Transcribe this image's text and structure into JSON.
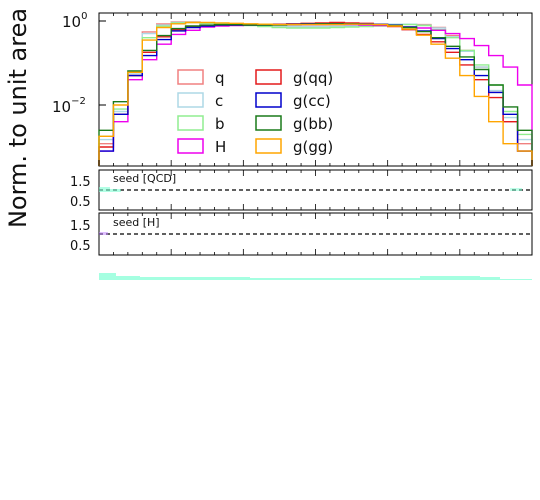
{
  "chart_data": {
    "type": "step",
    "scale": "log",
    "ylabel": "Norm. to unit area",
    "ytick_labels": {
      "top": [
        "10",
        "0"
      ],
      "mid": [
        "10",
        "−2"
      ]
    },
    "ratio_yticks": [
      "1.5",
      "0.5"
    ],
    "bins": 30,
    "legend_placement": "inside-lower-center, 2 columns",
    "series": [
      {
        "name": "q",
        "color": "#f08080",
        "values": [
          0.0012,
          0.006,
          0.05,
          0.55,
          0.85,
          0.95,
          0.95,
          0.9,
          0.85,
          0.82,
          0.8,
          0.78,
          0.76,
          0.74,
          0.74,
          0.74,
          0.74,
          0.76,
          0.78,
          0.8,
          0.82,
          0.84,
          0.82,
          0.7,
          0.45,
          0.2,
          0.08,
          0.02,
          0.004,
          0.0012
        ]
      },
      {
        "name": "c",
        "color": "#add8e6",
        "values": [
          0.0015,
          0.007,
          0.055,
          0.5,
          0.8,
          0.92,
          0.93,
          0.9,
          0.86,
          0.83,
          0.8,
          0.78,
          0.76,
          0.74,
          0.74,
          0.74,
          0.75,
          0.77,
          0.79,
          0.82,
          0.84,
          0.84,
          0.8,
          0.68,
          0.42,
          0.19,
          0.08,
          0.022,
          0.005,
          0.0015
        ]
      },
      {
        "name": "b",
        "color": "#90ee90",
        "values": [
          0.0018,
          0.008,
          0.06,
          0.4,
          0.75,
          0.9,
          0.92,
          0.88,
          0.85,
          0.82,
          0.78,
          0.74,
          0.7,
          0.68,
          0.68,
          0.68,
          0.7,
          0.72,
          0.74,
          0.76,
          0.8,
          0.82,
          0.78,
          0.62,
          0.4,
          0.2,
          0.09,
          0.03,
          0.007,
          0.002
        ]
      },
      {
        "name": "H",
        "color": "#ee00ee",
        "values": [
          0.0008,
          0.004,
          0.04,
          0.12,
          0.28,
          0.48,
          0.6,
          0.72,
          0.76,
          0.78,
          0.8,
          0.82,
          0.82,
          0.82,
          0.82,
          0.82,
          0.82,
          0.82,
          0.8,
          0.78,
          0.76,
          0.72,
          0.68,
          0.6,
          0.5,
          0.38,
          0.26,
          0.15,
          0.08,
          0.03
        ]
      },
      {
        "name": "g(qq)",
        "color": "#e41a1c",
        "values": [
          0.001,
          0.006,
          0.05,
          0.18,
          0.42,
          0.62,
          0.72,
          0.78,
          0.8,
          0.8,
          0.82,
          0.82,
          0.84,
          0.86,
          0.88,
          0.9,
          0.92,
          0.9,
          0.88,
          0.82,
          0.74,
          0.62,
          0.48,
          0.32,
          0.18,
          0.09,
          0.04,
          0.015,
          0.004,
          0.0008
        ]
      },
      {
        "name": "g(cc)",
        "color": "#0000cc",
        "values": [
          0.0008,
          0.006,
          0.05,
          0.15,
          0.36,
          0.58,
          0.7,
          0.76,
          0.8,
          0.8,
          0.8,
          0.8,
          0.82,
          0.84,
          0.86,
          0.86,
          0.86,
          0.86,
          0.86,
          0.84,
          0.8,
          0.72,
          0.58,
          0.38,
          0.22,
          0.12,
          0.05,
          0.02,
          0.006,
          0.0008
        ]
      },
      {
        "name": "g(bb)",
        "color": "#1a7a1a",
        "values": [
          0.0025,
          0.012,
          0.065,
          0.2,
          0.45,
          0.66,
          0.76,
          0.8,
          0.82,
          0.82,
          0.8,
          0.8,
          0.8,
          0.82,
          0.84,
          0.86,
          0.86,
          0.86,
          0.84,
          0.82,
          0.78,
          0.7,
          0.56,
          0.4,
          0.25,
          0.14,
          0.07,
          0.03,
          0.009,
          0.0025
        ]
      },
      {
        "name": "g(gg)",
        "color": "#ffa500",
        "values": [
          0.0018,
          0.01,
          0.06,
          0.35,
          0.7,
          0.86,
          0.92,
          0.92,
          0.9,
          0.88,
          0.86,
          0.84,
          0.82,
          0.82,
          0.82,
          0.82,
          0.82,
          0.84,
          0.84,
          0.82,
          0.76,
          0.64,
          0.46,
          0.28,
          0.13,
          0.05,
          0.016,
          0.004,
          0.0012,
          0.0008
        ]
      }
    ],
    "ratio_panels": [
      {
        "label": "seed [QCD]",
        "reference": 1.0,
        "ylim": [
          0.2,
          1.9
        ]
      },
      {
        "label": "seed [H]",
        "reference": 1.0,
        "ylim": [
          0.2,
          1.9
        ]
      }
    ]
  }
}
